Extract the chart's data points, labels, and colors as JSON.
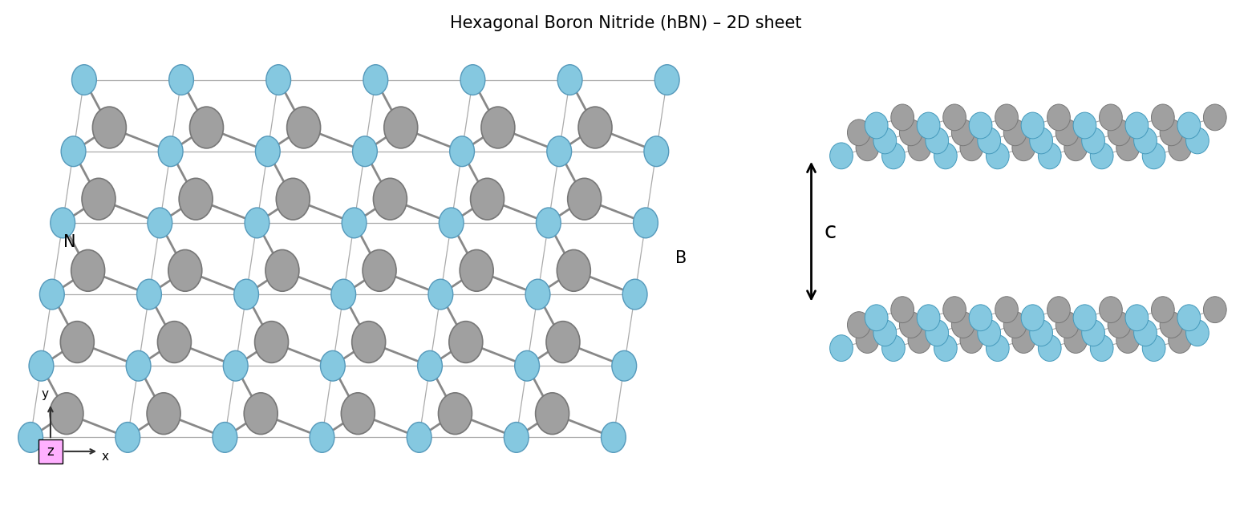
{
  "title": "Hexagonal Boron Nitride (hBN) – 2D sheet",
  "title_fontsize": 15,
  "B_color": "#85C8E0",
  "N_color": "#A0A0A0",
  "bond_color": "#888888",
  "bg_color": "#ffffff",
  "c_label": "c",
  "B_label": "B",
  "N_label": "N",
  "grid_line_color": "#aaaaaa",
  "z_box_color": "#FFB0FF"
}
